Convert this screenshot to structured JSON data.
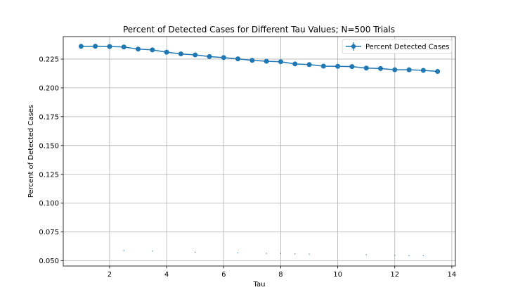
{
  "chart_data": {
    "type": "line",
    "title": "Percent of Detected Cases for Different Tau Values; N=500 Trials",
    "xlabel": "Tau",
    "ylabel": "Percent of Detected Cases",
    "xlim": [
      0.375,
      14.125
    ],
    "ylim": [
      0.0455,
      0.2445
    ],
    "xticks": [
      2,
      4,
      6,
      8,
      10,
      12,
      14
    ],
    "yticks": [
      0.05,
      0.075,
      0.1,
      0.125,
      0.15,
      0.175,
      0.2,
      0.225
    ],
    "grid": true,
    "legend_position": "top-right",
    "series": [
      {
        "name": "Percent Detected Cases",
        "color": "#1f77b4",
        "marker": "circle",
        "x": [
          1.0,
          1.5,
          2.0,
          2.5,
          3.0,
          3.5,
          4.0,
          4.5,
          5.0,
          5.5,
          6.0,
          6.5,
          7.0,
          7.5,
          8.0,
          8.5,
          9.0,
          9.5,
          10.0,
          10.5,
          11.0,
          11.5,
          12.0,
          12.5,
          13.0,
          13.5
        ],
        "y": [
          0.236,
          0.2361,
          0.2359,
          0.2355,
          0.2337,
          0.233,
          0.231,
          0.2295,
          0.2286,
          0.2272,
          0.2263,
          0.2252,
          0.2239,
          0.2231,
          0.2227,
          0.2208,
          0.2202,
          0.2189,
          0.2187,
          0.2185,
          0.2172,
          0.2168,
          0.2157,
          0.2157,
          0.2152,
          0.2143
        ]
      }
    ],
    "lower_error_marks": {
      "x": [
        2.5,
        3.5,
        5.0,
        6.5,
        7.5,
        8.0,
        8.5,
        9.0,
        11.0,
        12.0,
        12.5,
        13.0
      ],
      "y": [
        0.059,
        0.0585,
        0.0575,
        0.0568,
        0.0565,
        0.0563,
        0.056,
        0.0558,
        0.0552,
        0.0548,
        0.0545,
        0.0545
      ]
    }
  }
}
